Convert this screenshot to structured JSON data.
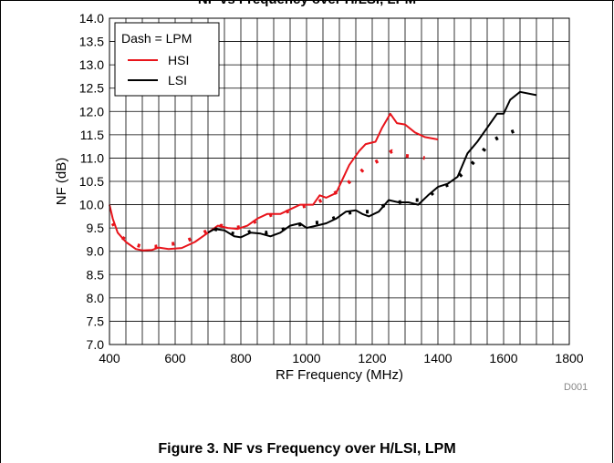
{
  "header_fragment": "NF vs Frequency over H/LSI, LPM",
  "caption": "Figure 3. NF vs Frequency over H/LSI, LPM",
  "figure_code": "D001",
  "colors": {
    "hsi": "#e8141b",
    "lsi": "#000000",
    "grid": "#000000"
  },
  "chart_data": {
    "type": "line",
    "title": "",
    "xlabel": "RF Frequency (MHz)",
    "ylabel": "NF (dB)",
    "xlim": [
      400,
      1800
    ],
    "ylim": [
      7.0,
      14.0
    ],
    "x_ticks": [
      "400",
      "600",
      "800",
      "1000",
      "1200",
      "1400",
      "1600",
      "1800"
    ],
    "y_ticks": [
      "7.0",
      "7.5",
      "8.0",
      "8.5",
      "9.0",
      "9.5",
      "10.0",
      "10.5",
      "11.0",
      "11.5",
      "12.0",
      "12.5",
      "13.0",
      "13.5",
      "14.0"
    ],
    "grid": true,
    "legend": {
      "title": "Dash = LPM",
      "position": "top-left",
      "entries": [
        "HSI",
        "LSI"
      ]
    },
    "series": [
      {
        "name": "HSI",
        "color": "#e8141b",
        "style": "solid",
        "points": [
          [
            400,
            10.0
          ],
          [
            410,
            9.7
          ],
          [
            425,
            9.4
          ],
          [
            450,
            9.2
          ],
          [
            480,
            9.05
          ],
          [
            500,
            9.02
          ],
          [
            530,
            9.03
          ],
          [
            550,
            9.08
          ],
          [
            580,
            9.05
          ],
          [
            620,
            9.07
          ],
          [
            660,
            9.2
          ],
          [
            700,
            9.4
          ],
          [
            730,
            9.55
          ],
          [
            760,
            9.5
          ],
          [
            790,
            9.48
          ],
          [
            820,
            9.55
          ],
          [
            850,
            9.7
          ],
          [
            880,
            9.8
          ],
          [
            920,
            9.8
          ],
          [
            950,
            9.9
          ],
          [
            980,
            10.0
          ],
          [
            1020,
            10.0
          ],
          [
            1040,
            10.2
          ],
          [
            1060,
            10.15
          ],
          [
            1090,
            10.25
          ],
          [
            1110,
            10.55
          ],
          [
            1130,
            10.85
          ],
          [
            1160,
            11.15
          ],
          [
            1180,
            11.3
          ],
          [
            1210,
            11.35
          ],
          [
            1230,
            11.65
          ],
          [
            1255,
            11.95
          ],
          [
            1275,
            11.75
          ],
          [
            1300,
            11.72
          ],
          [
            1330,
            11.55
          ],
          [
            1360,
            11.45
          ],
          [
            1400,
            11.4
          ]
        ]
      },
      {
        "name": "HSI LPM",
        "color": "#e8141b",
        "style": "dotted",
        "points": [
          [
            410,
            9.6
          ],
          [
            430,
            9.35
          ],
          [
            460,
            9.18
          ],
          [
            500,
            9.1
          ],
          [
            540,
            9.1
          ],
          [
            580,
            9.15
          ],
          [
            620,
            9.18
          ],
          [
            660,
            9.3
          ],
          [
            700,
            9.45
          ],
          [
            740,
            9.55
          ],
          [
            780,
            9.5
          ],
          [
            820,
            9.55
          ],
          [
            860,
            9.7
          ],
          [
            900,
            9.8
          ],
          [
            940,
            9.85
          ],
          [
            980,
            9.95
          ],
          [
            1020,
            10.0
          ],
          [
            1060,
            10.15
          ],
          [
            1100,
            10.3
          ],
          [
            1140,
            10.55
          ],
          [
            1180,
            10.8
          ],
          [
            1220,
            10.95
          ],
          [
            1260,
            11.15
          ],
          [
            1300,
            11.05
          ],
          [
            1340,
            11.02
          ],
          [
            1360,
            11.0
          ]
        ]
      },
      {
        "name": "LSI",
        "color": "#000000",
        "style": "solid",
        "points": [
          [
            700,
            9.4
          ],
          [
            720,
            9.48
          ],
          [
            750,
            9.45
          ],
          [
            780,
            9.32
          ],
          [
            800,
            9.3
          ],
          [
            830,
            9.4
          ],
          [
            860,
            9.38
          ],
          [
            890,
            9.32
          ],
          [
            920,
            9.4
          ],
          [
            950,
            9.55
          ],
          [
            980,
            9.6
          ],
          [
            1000,
            9.5
          ],
          [
            1030,
            9.55
          ],
          [
            1060,
            9.6
          ],
          [
            1090,
            9.7
          ],
          [
            1120,
            9.85
          ],
          [
            1150,
            9.88
          ],
          [
            1170,
            9.8
          ],
          [
            1190,
            9.75
          ],
          [
            1220,
            9.85
          ],
          [
            1250,
            10.1
          ],
          [
            1280,
            10.05
          ],
          [
            1310,
            10.05
          ],
          [
            1340,
            10.0
          ],
          [
            1370,
            10.2
          ],
          [
            1400,
            10.38
          ],
          [
            1430,
            10.45
          ],
          [
            1460,
            10.6
          ],
          [
            1490,
            11.1
          ],
          [
            1520,
            11.35
          ],
          [
            1550,
            11.65
          ],
          [
            1580,
            11.95
          ],
          [
            1600,
            11.95
          ],
          [
            1620,
            12.25
          ],
          [
            1650,
            12.42
          ],
          [
            1700,
            12.35
          ]
        ]
      },
      {
        "name": "LSI LPM",
        "color": "#000000",
        "style": "dotted",
        "points": [
          [
            720,
            9.48
          ],
          [
            760,
            9.4
          ],
          [
            800,
            9.35
          ],
          [
            840,
            9.45
          ],
          [
            880,
            9.4
          ],
          [
            920,
            9.45
          ],
          [
            960,
            9.55
          ],
          [
            1000,
            9.6
          ],
          [
            1040,
            9.62
          ],
          [
            1080,
            9.7
          ],
          [
            1120,
            9.82
          ],
          [
            1160,
            9.85
          ],
          [
            1200,
            9.85
          ],
          [
            1240,
            10.0
          ],
          [
            1280,
            10.05
          ],
          [
            1320,
            10.1
          ],
          [
            1360,
            10.1
          ],
          [
            1400,
            10.35
          ],
          [
            1440,
            10.45
          ],
          [
            1480,
            10.7
          ],
          [
            1520,
            11.0
          ],
          [
            1560,
            11.35
          ],
          [
            1600,
            11.5
          ],
          [
            1640,
            11.6
          ],
          [
            1670,
            11.7
          ]
        ]
      }
    ]
  }
}
